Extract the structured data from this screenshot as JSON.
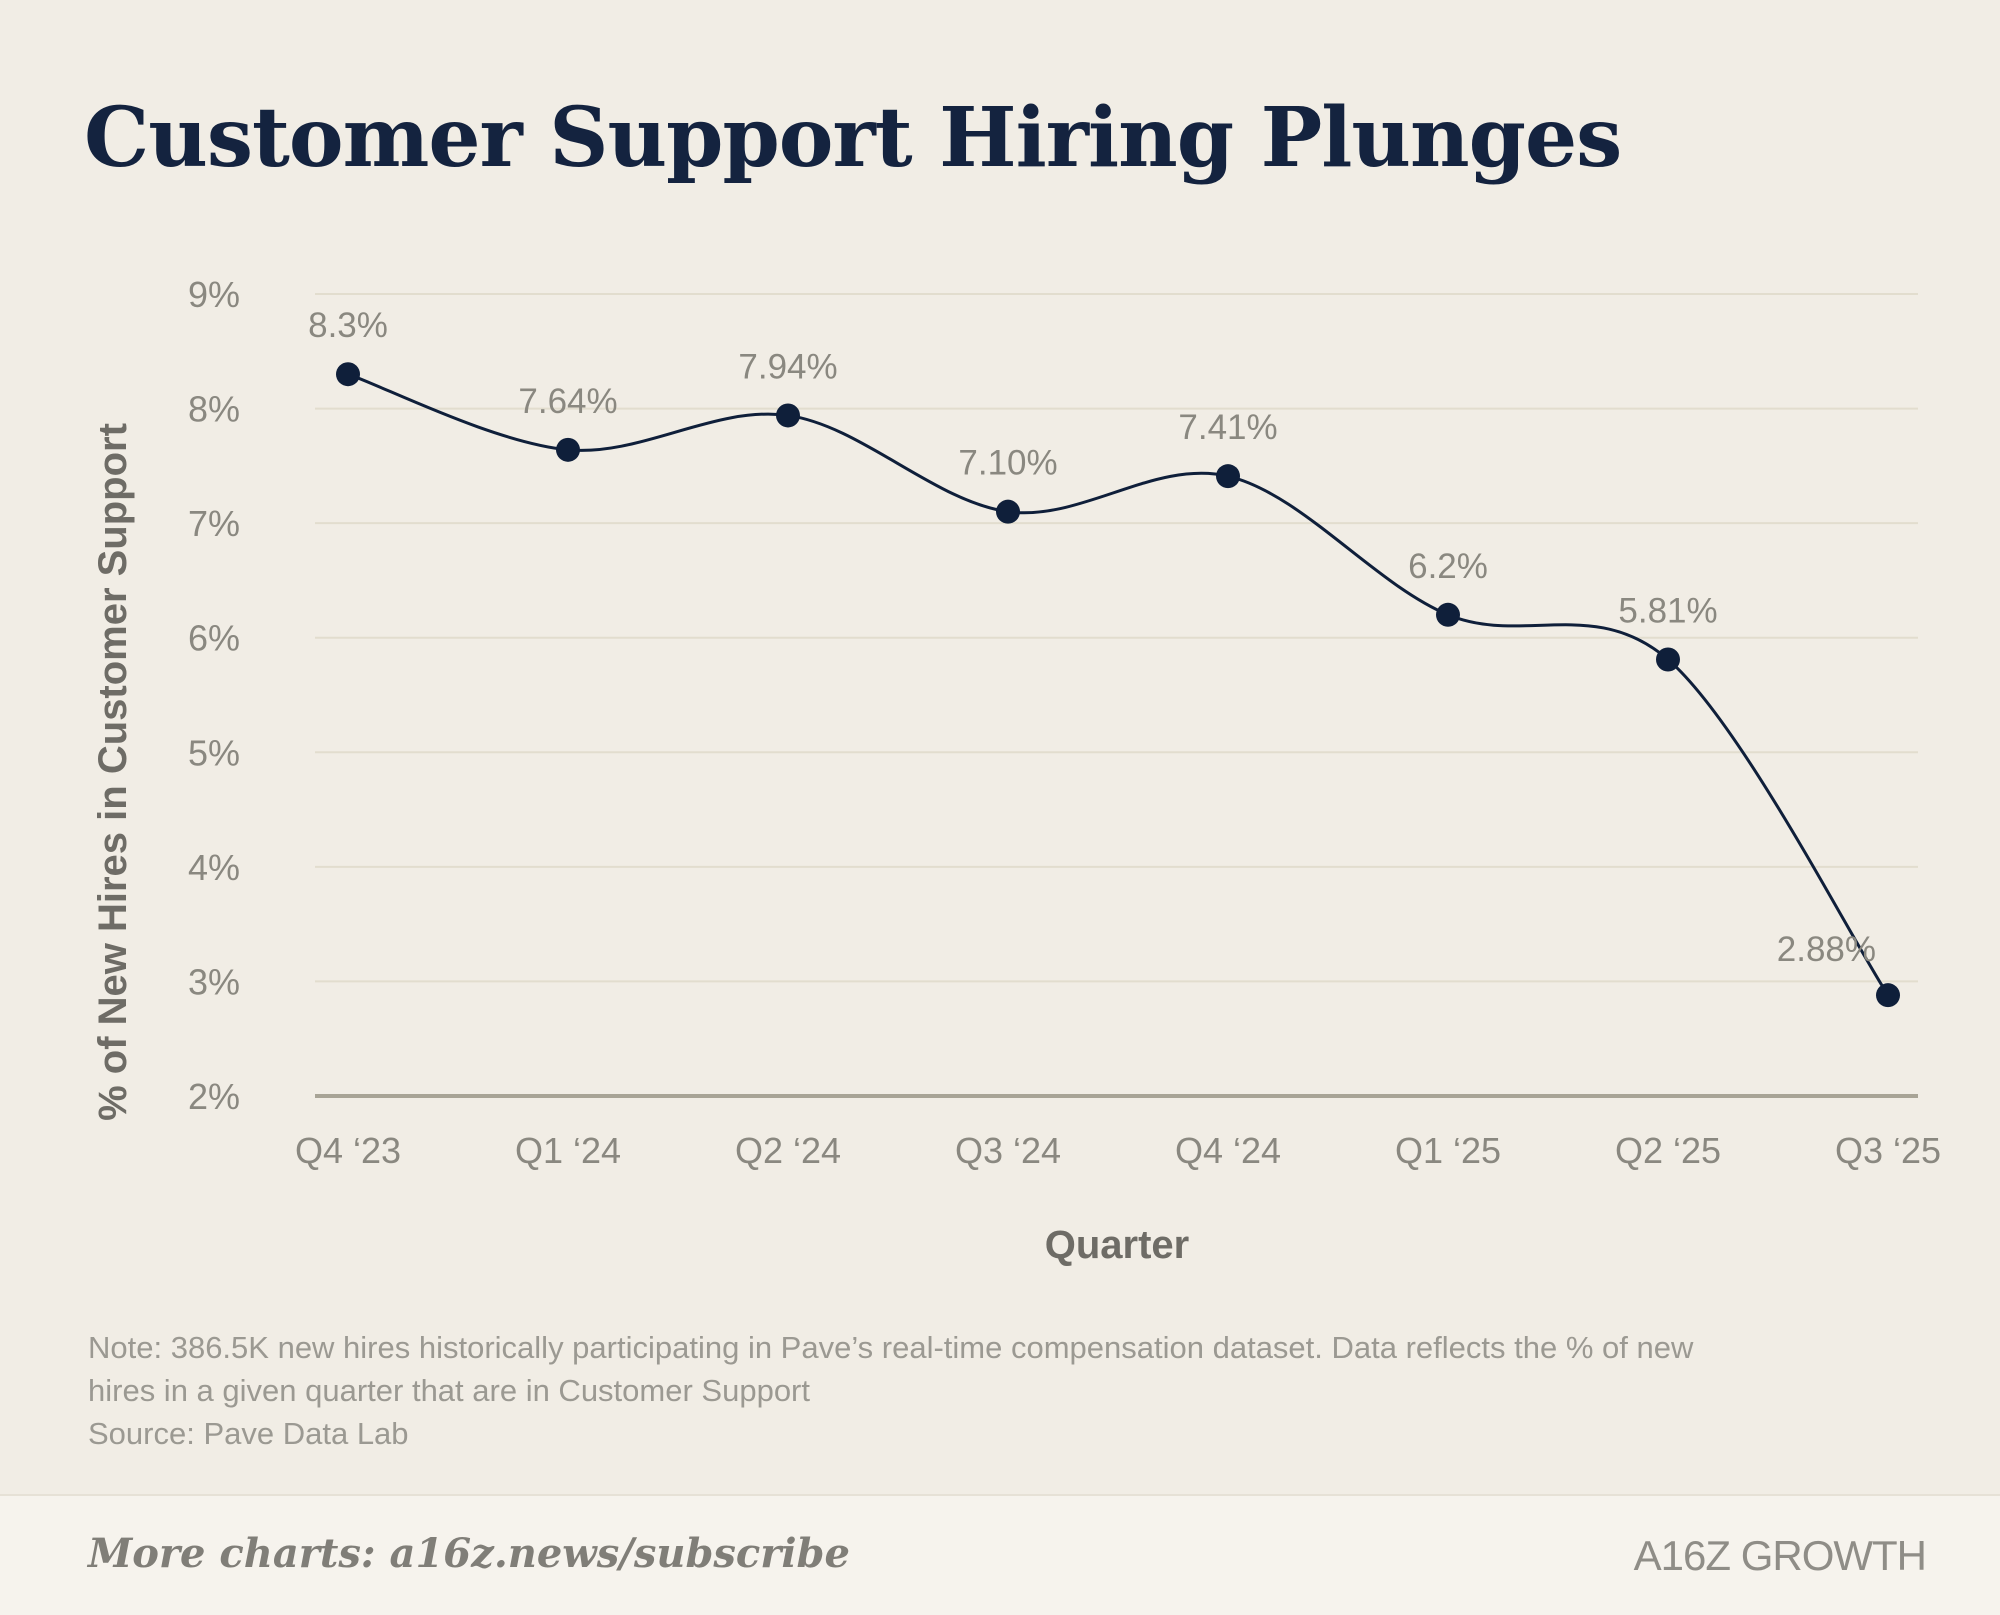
{
  "title": "Customer Support Hiring Plunges",
  "note": {
    "line1": "Note: 386.5K new hires historically participating in Pave’s real-time compensation dataset. Data reflects the % of new",
    "line2": "hires in a given quarter that are in Customer Support",
    "source": "Source: Pave Data Lab"
  },
  "footer": {
    "cta": "More charts: a16z.news/subscribe",
    "logo": "A16Z GROWTH"
  },
  "colors": {
    "line": "#0f1f3a",
    "grid": "#e2ddce",
    "axis": "#a8a496",
    "tick": "#8a8880",
    "label": "#6e6c66"
  },
  "chart_data": {
    "type": "line",
    "title": "",
    "xlabel": "Quarter",
    "ylabel": "% of New Hires in Customer Support",
    "categories": [
      "Q4 ‘23",
      "Q1 ‘24",
      "Q2 ‘24",
      "Q3 ‘24",
      "Q4 ‘24",
      "Q1 ‘25",
      "Q2 ‘25",
      "Q3 ‘25"
    ],
    "series": [
      {
        "values": [
          8.3,
          7.64,
          7.94,
          7.1,
          7.41,
          6.2,
          5.81,
          2.88
        ],
        "labels": [
          "8.3%",
          "7.64%",
          "7.94%",
          "7.10%",
          "7.41%",
          "6.2%",
          "5.81%",
          "2.88%"
        ]
      }
    ],
    "ylim": [
      2,
      9
    ],
    "yticks": [
      "2%",
      "3%",
      "4%",
      "5%",
      "6%",
      "7%",
      "8%",
      "9%"
    ],
    "grid": true,
    "smooth": true
  }
}
